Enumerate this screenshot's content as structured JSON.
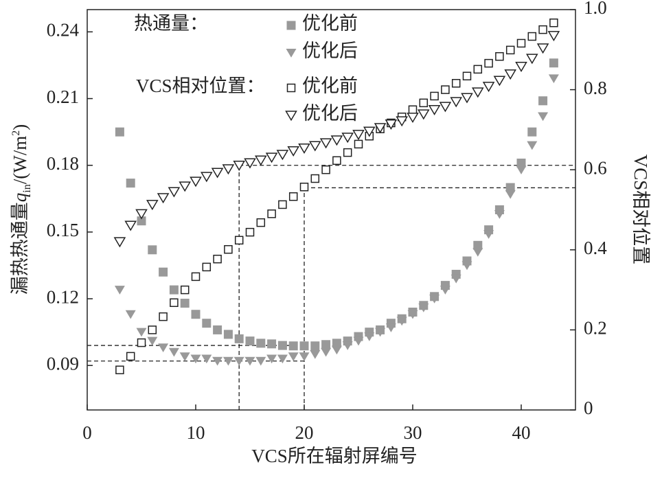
{
  "chart_data": {
    "type": "scatter",
    "xlabel": "VCS所在辐射屏编号",
    "ylabel": [
      "漏热热通量",
      "q",
      "in",
      "/(W/m",
      "2",
      ")"
    ],
    "y2label": "VCS相对位置",
    "xlim": [
      0,
      45
    ],
    "xticks": [
      0,
      10,
      20,
      30,
      40
    ],
    "ylim": [
      0.07,
      0.25
    ],
    "yticks": [
      0.09,
      0.12,
      0.15,
      0.18,
      0.21,
      0.24
    ],
    "y2lim": [
      0,
      1
    ],
    "y2ticks": [
      0,
      0.2,
      0.4,
      0.6,
      0.8,
      {
        "value": 1,
        "label": "1.0"
      }
    ],
    "x": [
      3,
      4,
      5,
      6,
      7,
      8,
      9,
      10,
      11,
      12,
      13,
      14,
      15,
      16,
      17,
      18,
      19,
      20,
      21,
      22,
      23,
      24,
      25,
      26,
      27,
      28,
      29,
      30,
      31,
      32,
      33,
      34,
      35,
      36,
      37,
      38,
      39,
      40,
      41,
      42,
      43
    ],
    "series_groups": [
      {
        "name": "热通量：",
        "series": [
          {
            "name": "优化前",
            "marker": "square",
            "filled": true,
            "color": "#999999",
            "values": [
              0.195,
              0.172,
              0.155,
              0.142,
              0.132,
              0.124,
              0.118,
              0.113,
              0.109,
              0.106,
              0.104,
              0.102,
              0.101,
              0.1,
              0.0997,
              0.099,
              0.0988,
              0.0988,
              0.0988,
              0.0994,
              0.1,
              0.101,
              0.103,
              0.105,
              0.106,
              0.109,
              0.111,
              0.114,
              0.117,
              0.121,
              0.126,
              0.131,
              0.137,
              0.144,
              0.151,
              0.16,
              0.17,
              0.181,
              0.195,
              0.209,
              0.226
            ]
          },
          {
            "name": "优化后",
            "marker": "triangle",
            "filled": true,
            "color": "#999999",
            "values": [
              0.124,
              0.113,
              0.105,
              0.101,
              0.098,
              0.096,
              0.094,
              0.093,
              0.093,
              0.092,
              0.092,
              0.092,
              0.092,
              0.092,
              0.093,
              0.093,
              0.094,
              0.094,
              0.095,
              0.096,
              0.097,
              0.099,
              0.101,
              0.103,
              0.105,
              0.107,
              0.11,
              0.113,
              0.116,
              0.12,
              0.124,
              0.129,
              0.135,
              0.141,
              0.149,
              0.158,
              0.167,
              0.178,
              0.189,
              0.202,
              0.219
            ]
          }
        ]
      },
      {
        "name": "VCS相对位置：",
        "series": [
          {
            "name": "优化前",
            "marker": "square",
            "filled": false,
            "color": "#222222",
            "axis": "y2",
            "values": [
              0.1,
              0.134,
              0.168,
              0.2,
              0.233,
              0.268,
              0.3,
              0.333,
              0.357,
              0.377,
              0.401,
              0.424,
              0.444,
              0.468,
              0.49,
              0.513,
              0.533,
              0.557,
              0.578,
              0.6,
              0.623,
              0.643,
              0.664,
              0.684,
              0.702,
              0.717,
              0.732,
              0.75,
              0.767,
              0.784,
              0.8,
              0.816,
              0.834,
              0.851,
              0.866,
              0.883,
              0.899,
              0.916,
              0.933,
              0.95,
              0.967
            ]
          },
          {
            "name": "优化后",
            "marker": "triangle",
            "filled": false,
            "color": "#222222",
            "axis": "y2",
            "values": [
              0.42,
              0.461,
              0.49,
              0.513,
              0.53,
              0.545,
              0.559,
              0.571,
              0.583,
              0.593,
              0.602,
              0.611,
              0.617,
              0.624,
              0.631,
              0.638,
              0.647,
              0.654,
              0.66,
              0.667,
              0.674,
              0.681,
              0.688,
              0.696,
              0.705,
              0.714,
              0.722,
              0.731,
              0.739,
              0.75,
              0.758,
              0.77,
              0.78,
              0.794,
              0.808,
              0.823,
              0.839,
              0.858,
              0.878,
              0.904,
              0.935
            ]
          }
        ]
      }
    ],
    "guides": [
      {
        "x": 14,
        "y": 0.092,
        "y2": 0.611
      },
      {
        "x": 20,
        "y": 0.099,
        "y2": 0.555
      }
    ]
  }
}
